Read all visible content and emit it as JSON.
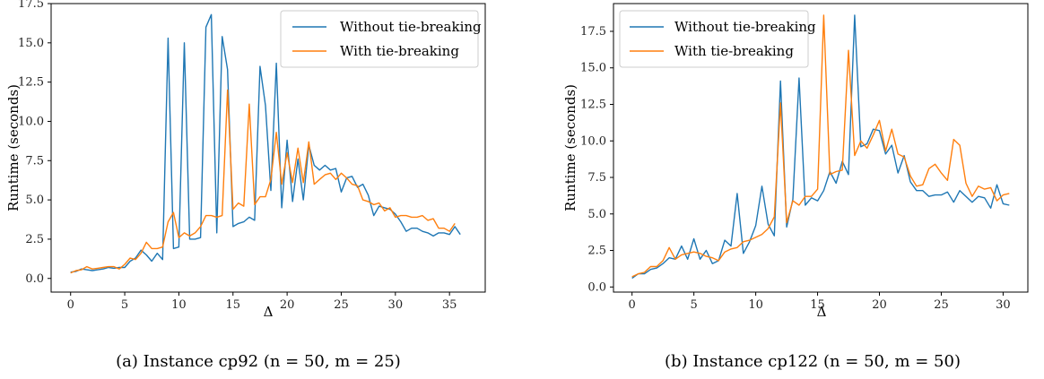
{
  "chart_data": [
    {
      "type": "line",
      "xlabel": "Δ",
      "ylabel": "Runtime (seconds)",
      "xlim": [
        -1.8,
        38.3
      ],
      "ylim": [
        -0.87,
        17.5
      ],
      "xticks": [
        0,
        5,
        10,
        15,
        20,
        25,
        30,
        35
      ],
      "yticks": [
        0.0,
        2.5,
        5.0,
        7.5,
        10.0,
        12.5,
        15.0,
        17.5
      ],
      "ytick_labels": [
        "0.0",
        "2.5",
        "5.0",
        "7.5",
        "10.0",
        "12.5",
        "15.0",
        "17.5"
      ],
      "legend_position": "top-right",
      "caption": "(a) Instance cp92 (n = 50, m = 25)",
      "series": [
        {
          "name": "Without tie-breaking",
          "color": "#1f77b4",
          "points": [
            [
              0.0,
              0.4
            ],
            [
              0.5,
              0.45
            ],
            [
              1.0,
              0.6
            ],
            [
              1.5,
              0.55
            ],
            [
              2.0,
              0.5
            ],
            [
              2.5,
              0.55
            ],
            [
              3.0,
              0.6
            ],
            [
              3.5,
              0.7
            ],
            [
              4.0,
              0.65
            ],
            [
              4.5,
              0.7
            ],
            [
              5.0,
              0.7
            ],
            [
              5.5,
              1.1
            ],
            [
              6.0,
              1.3
            ],
            [
              6.5,
              1.8
            ],
            [
              7.0,
              1.5
            ],
            [
              7.5,
              1.1
            ],
            [
              8.0,
              1.6
            ],
            [
              8.5,
              1.2
            ],
            [
              9.0,
              15.3
            ],
            [
              9.5,
              1.9
            ],
            [
              10.0,
              2.0
            ],
            [
              10.5,
              15.0
            ],
            [
              11.0,
              2.5
            ],
            [
              11.5,
              2.5
            ],
            [
              12.0,
              2.6
            ],
            [
              12.5,
              16.0
            ],
            [
              13.0,
              16.8
            ],
            [
              13.5,
              2.9
            ],
            [
              14.0,
              15.4
            ],
            [
              14.5,
              13.3
            ],
            [
              15.0,
              3.3
            ],
            [
              15.5,
              3.5
            ],
            [
              16.0,
              3.6
            ],
            [
              16.5,
              3.9
            ],
            [
              17.0,
              3.7
            ],
            [
              17.5,
              13.5
            ],
            [
              18.0,
              11.0
            ],
            [
              18.5,
              5.6
            ],
            [
              19.0,
              13.7
            ],
            [
              19.5,
              4.5
            ],
            [
              20.0,
              8.8
            ],
            [
              20.5,
              4.9
            ],
            [
              21.0,
              7.6
            ],
            [
              21.5,
              5.0
            ],
            [
              22.0,
              8.5
            ],
            [
              22.5,
              7.2
            ],
            [
              23.0,
              6.9
            ],
            [
              23.5,
              7.2
            ],
            [
              24.0,
              6.9
            ],
            [
              24.5,
              7.0
            ],
            [
              25.0,
              5.5
            ],
            [
              25.5,
              6.4
            ],
            [
              26.0,
              6.5
            ],
            [
              26.5,
              5.8
            ],
            [
              27.0,
              6.0
            ],
            [
              27.5,
              5.3
            ],
            [
              28.0,
              4.0
            ],
            [
              28.5,
              4.6
            ],
            [
              29.0,
              4.5
            ],
            [
              29.5,
              4.4
            ],
            [
              30.0,
              4.1
            ],
            [
              30.5,
              3.6
            ],
            [
              31.0,
              3.0
            ],
            [
              31.5,
              3.2
            ],
            [
              32.0,
              3.2
            ],
            [
              32.5,
              3.0
            ],
            [
              33.0,
              2.9
            ],
            [
              33.5,
              2.7
            ],
            [
              34.0,
              2.9
            ],
            [
              34.5,
              2.9
            ],
            [
              35.0,
              2.8
            ],
            [
              35.5,
              3.3
            ],
            [
              36.0,
              2.8
            ]
          ]
        },
        {
          "name": "With tie-breaking",
          "color": "#ff7f0e",
          "points": [
            [
              0.0,
              0.35
            ],
            [
              0.5,
              0.5
            ],
            [
              1.0,
              0.55
            ],
            [
              1.5,
              0.75
            ],
            [
              2.0,
              0.6
            ],
            [
              2.5,
              0.65
            ],
            [
              3.0,
              0.7
            ],
            [
              3.5,
              0.75
            ],
            [
              4.0,
              0.75
            ],
            [
              4.5,
              0.6
            ],
            [
              5.0,
              0.9
            ],
            [
              5.5,
              1.3
            ],
            [
              6.0,
              1.2
            ],
            [
              6.5,
              1.6
            ],
            [
              7.0,
              2.3
            ],
            [
              7.5,
              1.9
            ],
            [
              8.0,
              1.9
            ],
            [
              8.5,
              2.0
            ],
            [
              9.0,
              3.6
            ],
            [
              9.5,
              4.2
            ],
            [
              10.0,
              2.6
            ],
            [
              10.5,
              2.9
            ],
            [
              11.0,
              2.7
            ],
            [
              11.5,
              2.9
            ],
            [
              12.0,
              3.3
            ],
            [
              12.5,
              4.0
            ],
            [
              13.0,
              4.0
            ],
            [
              13.5,
              3.9
            ],
            [
              14.0,
              4.0
            ],
            [
              14.5,
              12.0
            ],
            [
              15.0,
              4.4
            ],
            [
              15.5,
              4.8
            ],
            [
              16.0,
              4.6
            ],
            [
              16.5,
              11.1
            ],
            [
              17.0,
              4.7
            ],
            [
              17.5,
              5.2
            ],
            [
              18.0,
              5.2
            ],
            [
              18.5,
              6.3
            ],
            [
              19.0,
              9.3
            ],
            [
              19.5,
              6.0
            ],
            [
              20.0,
              8.0
            ],
            [
              20.5,
              6.1
            ],
            [
              21.0,
              8.3
            ],
            [
              21.5,
              6.1
            ],
            [
              22.0,
              8.7
            ],
            [
              22.5,
              6.0
            ],
            [
              23.0,
              6.3
            ],
            [
              23.5,
              6.6
            ],
            [
              24.0,
              6.7
            ],
            [
              24.5,
              6.3
            ],
            [
              25.0,
              6.7
            ],
            [
              25.5,
              6.4
            ],
            [
              26.0,
              6.0
            ],
            [
              26.5,
              5.9
            ],
            [
              27.0,
              5.0
            ],
            [
              27.5,
              4.9
            ],
            [
              28.0,
              4.7
            ],
            [
              28.5,
              4.8
            ],
            [
              29.0,
              4.3
            ],
            [
              29.5,
              4.5
            ],
            [
              30.0,
              3.9
            ],
            [
              30.5,
              4.0
            ],
            [
              31.0,
              4.0
            ],
            [
              31.5,
              3.9
            ],
            [
              32.0,
              3.9
            ],
            [
              32.5,
              4.0
            ],
            [
              33.0,
              3.7
            ],
            [
              33.5,
              3.8
            ],
            [
              34.0,
              3.2
            ],
            [
              34.5,
              3.2
            ],
            [
              35.0,
              3.0
            ],
            [
              35.5,
              3.5
            ]
          ]
        }
      ]
    },
    {
      "type": "line",
      "xlabel": "Δ",
      "ylabel": "Runtime (seconds)",
      "xlim": [
        -1.5,
        32.0
      ],
      "ylim": [
        -0.35,
        19.4
      ],
      "xticks": [
        0,
        5,
        10,
        15,
        20,
        25,
        30
      ],
      "yticks": [
        0.0,
        2.5,
        5.0,
        7.5,
        10.0,
        12.5,
        15.0,
        17.5
      ],
      "ytick_labels": [
        "0.0",
        "2.5",
        "5.0",
        "7.5",
        "10.0",
        "12.5",
        "15.0",
        "17.5"
      ],
      "legend_position": "top-left",
      "caption": "(b) Instance cp122 (n = 50, m = 50)",
      "series": [
        {
          "name": "Without tie-breaking",
          "color": "#1f77b4",
          "points": [
            [
              0.0,
              0.6
            ],
            [
              0.5,
              0.9
            ],
            [
              1.0,
              0.9
            ],
            [
              1.5,
              1.2
            ],
            [
              2.0,
              1.3
            ],
            [
              2.5,
              1.6
            ],
            [
              3.0,
              2.0
            ],
            [
              3.5,
              1.9
            ],
            [
              4.0,
              2.8
            ],
            [
              4.5,
              1.9
            ],
            [
              5.0,
              3.3
            ],
            [
              5.5,
              1.9
            ],
            [
              6.0,
              2.5
            ],
            [
              6.5,
              1.6
            ],
            [
              7.0,
              1.8
            ],
            [
              7.5,
              3.2
            ],
            [
              8.0,
              2.8
            ],
            [
              8.5,
              6.4
            ],
            [
              9.0,
              2.3
            ],
            [
              9.5,
              3.1
            ],
            [
              10.0,
              4.2
            ],
            [
              10.5,
              6.9
            ],
            [
              11.0,
              4.3
            ],
            [
              11.5,
              3.5
            ],
            [
              12.0,
              14.1
            ],
            [
              12.5,
              4.1
            ],
            [
              13.0,
              6.0
            ],
            [
              13.5,
              14.3
            ],
            [
              14.0,
              5.6
            ],
            [
              14.5,
              6.1
            ],
            [
              15.0,
              5.9
            ],
            [
              15.5,
              6.6
            ],
            [
              16.0,
              7.9
            ],
            [
              16.5,
              7.1
            ],
            [
              17.0,
              8.6
            ],
            [
              17.5,
              7.7
            ],
            [
              18.0,
              18.6
            ],
            [
              18.5,
              9.6
            ],
            [
              19.0,
              9.8
            ],
            [
              19.5,
              10.8
            ],
            [
              20.0,
              10.7
            ],
            [
              20.5,
              9.1
            ],
            [
              21.0,
              9.7
            ],
            [
              21.5,
              7.8
            ],
            [
              22.0,
              9.0
            ],
            [
              22.5,
              7.2
            ],
            [
              23.0,
              6.6
            ],
            [
              23.5,
              6.6
            ],
            [
              24.0,
              6.2
            ],
            [
              24.5,
              6.3
            ],
            [
              25.0,
              6.3
            ],
            [
              25.5,
              6.5
            ],
            [
              26.0,
              5.8
            ],
            [
              26.5,
              6.6
            ],
            [
              27.0,
              6.2
            ],
            [
              27.5,
              5.8
            ],
            [
              28.0,
              6.2
            ],
            [
              28.5,
              6.1
            ],
            [
              29.0,
              5.4
            ],
            [
              29.5,
              7.0
            ],
            [
              30.0,
              5.7
            ],
            [
              30.5,
              5.6
            ]
          ]
        },
        {
          "name": "With tie-breaking",
          "color": "#ff7f0e",
          "points": [
            [
              0.0,
              0.7
            ],
            [
              0.5,
              0.9
            ],
            [
              1.0,
              1.0
            ],
            [
              1.5,
              1.4
            ],
            [
              2.0,
              1.4
            ],
            [
              2.5,
              1.8
            ],
            [
              3.0,
              2.7
            ],
            [
              3.5,
              1.9
            ],
            [
              4.0,
              2.2
            ],
            [
              4.5,
              2.3
            ],
            [
              5.0,
              2.4
            ],
            [
              5.5,
              2.3
            ],
            [
              6.0,
              2.1
            ],
            [
              6.5,
              2.0
            ],
            [
              7.0,
              1.8
            ],
            [
              7.5,
              2.4
            ],
            [
              8.0,
              2.6
            ],
            [
              8.5,
              2.7
            ],
            [
              9.0,
              3.1
            ],
            [
              9.5,
              3.2
            ],
            [
              10.0,
              3.4
            ],
            [
              10.5,
              3.6
            ],
            [
              11.0,
              4.0
            ],
            [
              11.5,
              4.8
            ],
            [
              12.0,
              12.6
            ],
            [
              12.5,
              4.4
            ],
            [
              13.0,
              5.9
            ],
            [
              13.5,
              5.6
            ],
            [
              14.0,
              6.2
            ],
            [
              14.5,
              6.2
            ],
            [
              15.0,
              6.7
            ],
            [
              15.5,
              18.6
            ],
            [
              16.0,
              7.7
            ],
            [
              16.5,
              7.9
            ],
            [
              17.0,
              8.0
            ],
            [
              17.5,
              16.2
            ],
            [
              18.0,
              9.0
            ],
            [
              18.5,
              10.0
            ],
            [
              19.0,
              9.5
            ],
            [
              19.5,
              10.4
            ],
            [
              20.0,
              11.4
            ],
            [
              20.5,
              9.3
            ],
            [
              21.0,
              10.8
            ],
            [
              21.5,
              9.1
            ],
            [
              22.0,
              8.9
            ],
            [
              22.5,
              7.6
            ],
            [
              23.0,
              6.9
            ],
            [
              23.5,
              7.0
            ],
            [
              24.0,
              8.1
            ],
            [
              24.5,
              8.4
            ],
            [
              25.0,
              7.8
            ],
            [
              25.5,
              7.3
            ],
            [
              26.0,
              10.1
            ],
            [
              26.5,
              9.7
            ],
            [
              27.0,
              7.1
            ],
            [
              27.5,
              6.2
            ],
            [
              28.0,
              6.9
            ],
            [
              28.5,
              6.7
            ],
            [
              29.0,
              6.8
            ],
            [
              29.5,
              5.9
            ],
            [
              30.0,
              6.3
            ],
            [
              30.5,
              6.4
            ]
          ]
        }
      ]
    }
  ]
}
